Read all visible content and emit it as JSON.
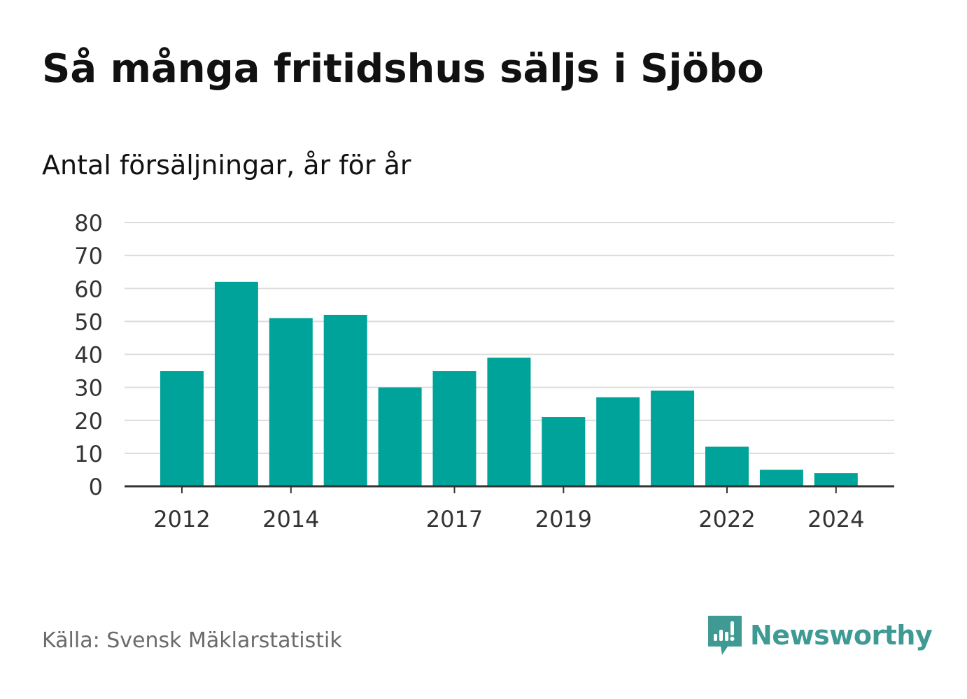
{
  "header": {
    "title": "Så många fritidshus säljs i Sjöbo",
    "subtitle": "Antal försäljningar, år för år"
  },
  "footer": {
    "source": "Källa: Svensk Mäklarstatistik",
    "brand": "Newsworthy",
    "brand_icon": "newsworthy-logo-icon",
    "brand_color": "#3f9a94"
  },
  "chart_data": {
    "type": "bar",
    "categories": [
      "2012",
      "2013",
      "2014",
      "2015",
      "2016",
      "2017",
      "2018",
      "2019",
      "2020",
      "2021",
      "2022",
      "2023",
      "2024"
    ],
    "values": [
      35,
      62,
      51,
      52,
      30,
      35,
      39,
      21,
      27,
      29,
      12,
      5,
      4
    ],
    "x_tick_labels": [
      "2012",
      "2014",
      "2017",
      "2019",
      "2022",
      "2024"
    ],
    "y_ticks": [
      0,
      10,
      20,
      30,
      40,
      50,
      60,
      70,
      80
    ],
    "ylim": [
      0,
      80
    ],
    "bar_color": "#00a39a",
    "grid": true,
    "legend": "none"
  }
}
